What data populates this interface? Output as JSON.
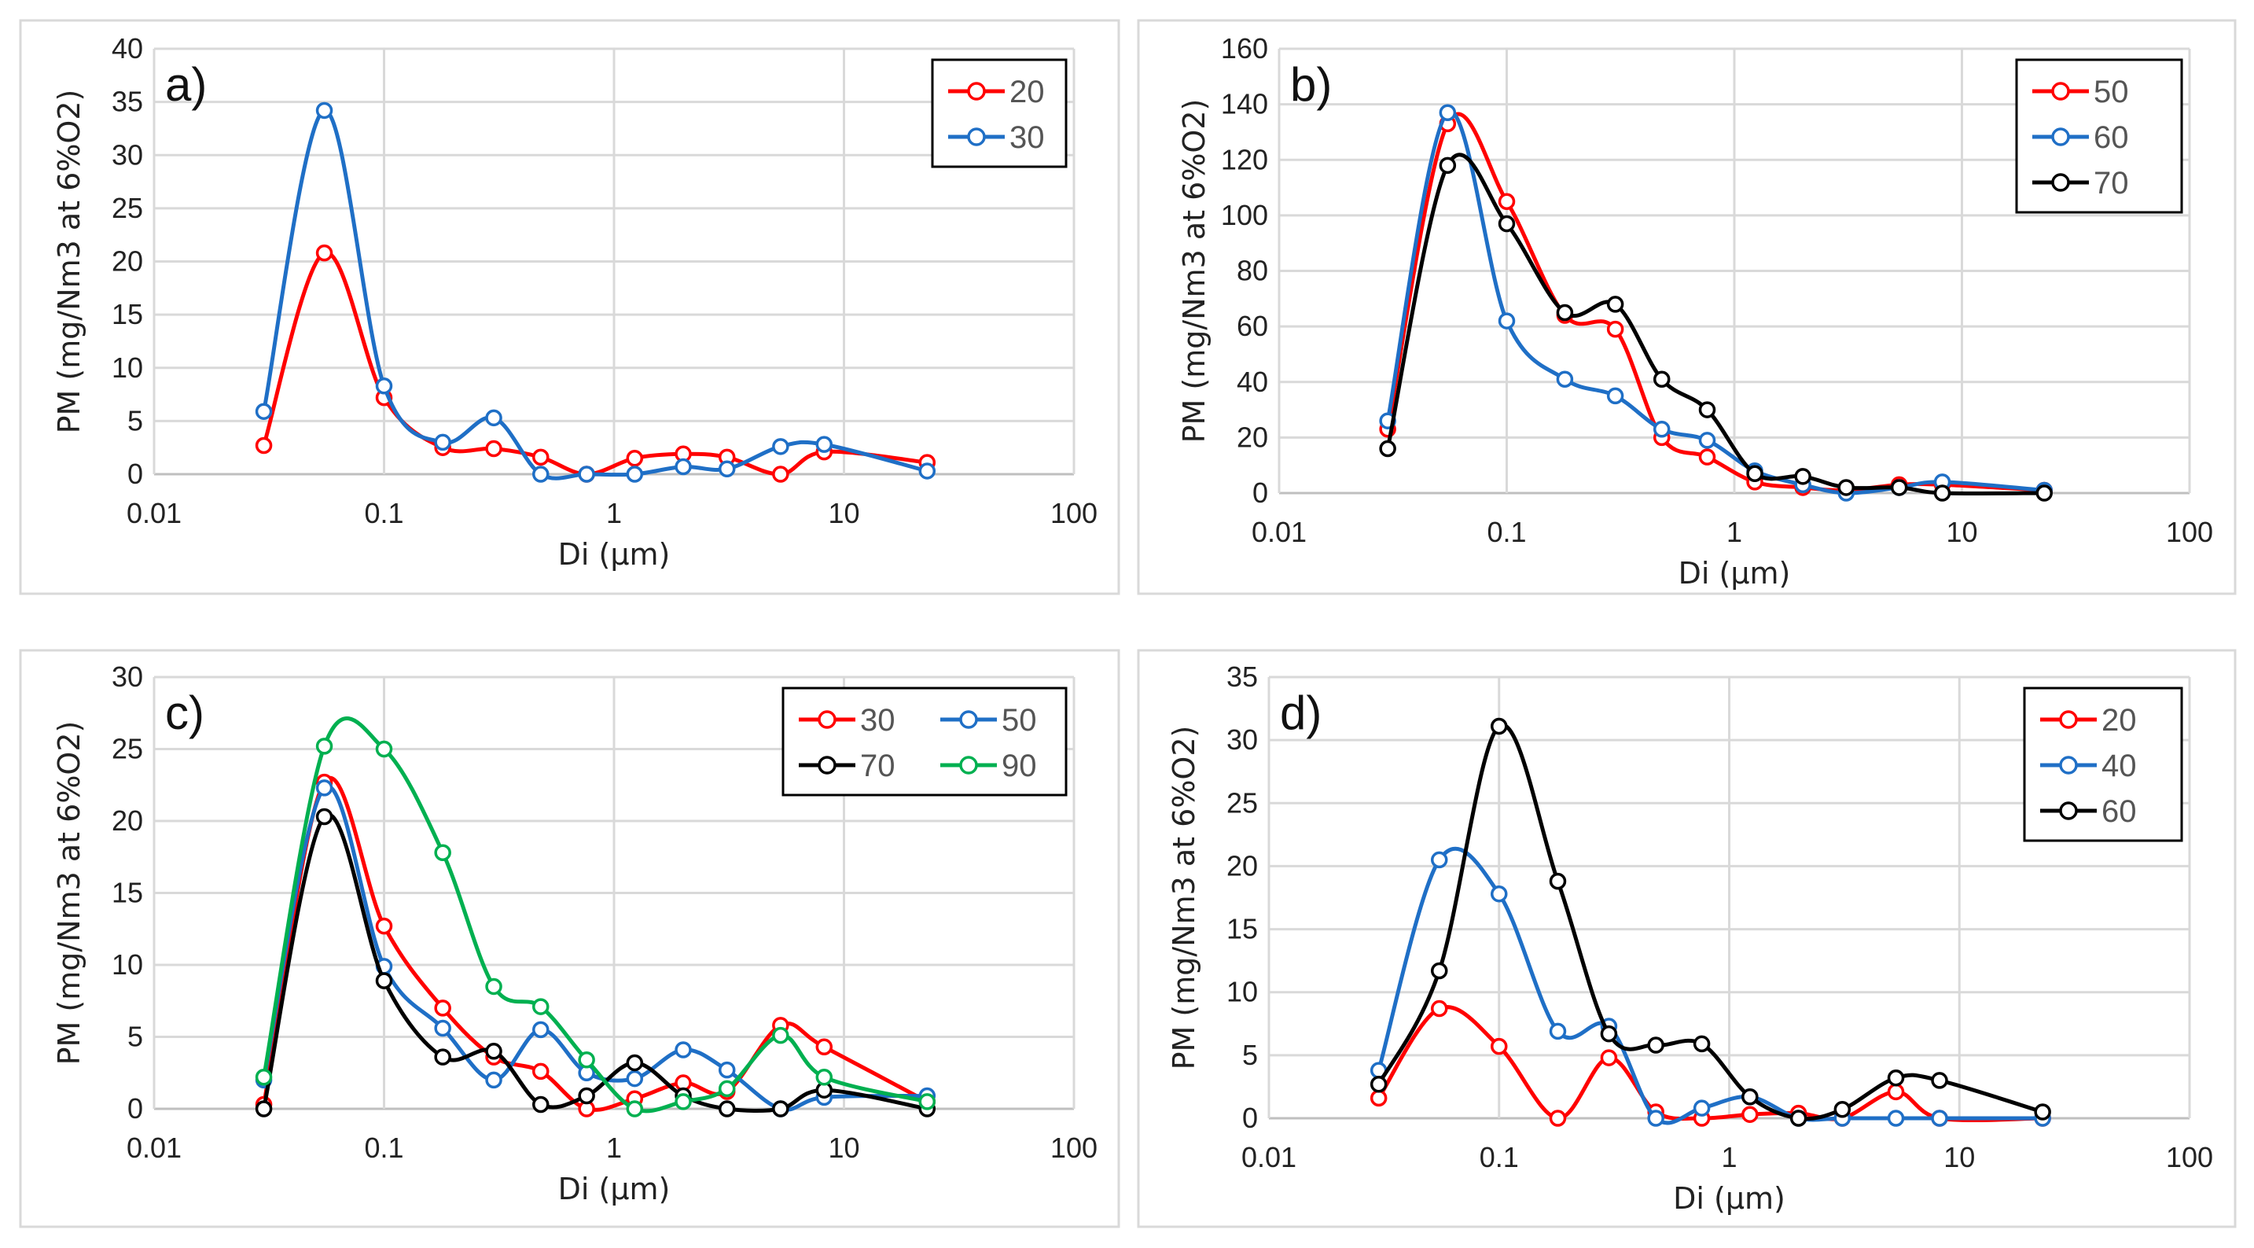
{
  "chart_data": [
    {
      "type": "line",
      "panel_label": "a)",
      "xlabel": "Di (µm)",
      "ylabel": "PM (mg/Nm3 at 6%O2)",
      "xscale": "log",
      "xlim": [
        0.01,
        100
      ],
      "xticks": [
        "0.01",
        "0.1",
        "1",
        "10",
        "100"
      ],
      "ylim": [
        0,
        40
      ],
      "yticks": [
        "0",
        "5",
        "10",
        "15",
        "20",
        "25",
        "30",
        "35",
        "40"
      ],
      "grid": true,
      "legend_position": "top-right",
      "x": [
        0.03,
        0.055,
        0.1,
        0.18,
        0.3,
        0.48,
        0.76,
        1.23,
        2.0,
        3.1,
        5.3,
        8.2,
        23
      ],
      "series": [
        {
          "name": "20",
          "color": "#ff0000",
          "values": [
            2.7,
            20.8,
            7.2,
            2.5,
            2.4,
            1.6,
            0,
            1.5,
            1.9,
            1.6,
            0,
            2.1,
            1.1
          ]
        },
        {
          "name": "30",
          "color": "#1f6fc6",
          "values": [
            5.9,
            34.2,
            8.3,
            3.0,
            5.3,
            0,
            0,
            0,
            0.7,
            0.5,
            2.6,
            2.8,
            0.3
          ]
        }
      ]
    },
    {
      "type": "line",
      "panel_label": "b)",
      "xlabel": "Di (µm)",
      "ylabel": "PM (mg/Nm3 at 6%O2)",
      "xscale": "log",
      "xlim": [
        0.01,
        100
      ],
      "xticks": [
        "0.01",
        "0.1",
        "1",
        "10",
        "100"
      ],
      "ylim": [
        0,
        160
      ],
      "yticks": [
        "0",
        "20",
        "40",
        "60",
        "80",
        "100",
        "120",
        "140",
        "160"
      ],
      "grid": true,
      "legend_position": "top-right",
      "x": [
        0.03,
        0.055,
        0.1,
        0.18,
        0.3,
        0.48,
        0.76,
        1.23,
        2.0,
        3.1,
        5.3,
        8.2,
        23
      ],
      "series": [
        {
          "name": "50",
          "color": "#ff0000",
          "values": [
            23,
            133,
            105,
            64,
            59,
            20,
            13,
            4,
            2,
            1,
            3,
            3,
            1
          ]
        },
        {
          "name": "60",
          "color": "#1f6fc6",
          "values": [
            26,
            137,
            62,
            41,
            35,
            23,
            19,
            8,
            3,
            0,
            2,
            4,
            1
          ]
        },
        {
          "name": "70",
          "color": "#000000",
          "values": [
            16,
            118,
            97,
            65,
            68,
            41,
            30,
            7,
            6,
            2,
            2,
            0,
            0
          ]
        }
      ]
    },
    {
      "type": "line",
      "panel_label": "c)",
      "xlabel": "Di (µm)",
      "ylabel": "PM (mg/Nm3 at 6%O2)",
      "xscale": "log",
      "xlim": [
        0.01,
        100
      ],
      "xticks": [
        "0.01",
        "0.1",
        "1",
        "10",
        "100"
      ],
      "ylim": [
        0,
        30
      ],
      "yticks": [
        "0",
        "5",
        "10",
        "15",
        "20",
        "25",
        "30"
      ],
      "grid": true,
      "legend_position": "top-right",
      "legend_columns": 2,
      "x": [
        0.03,
        0.055,
        0.1,
        0.18,
        0.3,
        0.48,
        0.76,
        1.23,
        2.0,
        3.1,
        5.3,
        8.2,
        23
      ],
      "series": [
        {
          "name": "30",
          "color": "#ff0000",
          "values": [
            0.3,
            22.7,
            12.7,
            7.0,
            3.6,
            2.6,
            0,
            0.7,
            1.8,
            1.2,
            5.8,
            4.3,
            0.5
          ]
        },
        {
          "name": "50",
          "color": "#1f6fc6",
          "values": [
            2.0,
            22.3,
            9.9,
            5.6,
            2.0,
            5.5,
            2.5,
            2.1,
            4.1,
            2.7,
            0,
            0.8,
            0.9
          ]
        },
        {
          "name": "70",
          "color": "#000000",
          "values": [
            0,
            20.3,
            8.9,
            3.6,
            4.0,
            0.3,
            0.9,
            3.2,
            0.9,
            0,
            0,
            1.3,
            0
          ]
        },
        {
          "name": "90",
          "color": "#00b050",
          "values": [
            2.2,
            25.2,
            25.0,
            17.8,
            8.5,
            7.1,
            3.4,
            0,
            0.5,
            1.4,
            5.1,
            2.2,
            0.5
          ]
        }
      ]
    },
    {
      "type": "line",
      "panel_label": "d)",
      "xlabel": "Di (µm)",
      "ylabel": "PM (mg/Nm3 at 6%O2)",
      "xscale": "log",
      "xlim": [
        0.01,
        100
      ],
      "xticks": [
        "0.01",
        "0.1",
        "1",
        "10",
        "100"
      ],
      "ylim": [
        0,
        35
      ],
      "yticks": [
        "0",
        "5",
        "10",
        "15",
        "20",
        "25",
        "30",
        "35"
      ],
      "grid": true,
      "legend_position": "top-right",
      "x": [
        0.03,
        0.055,
        0.1,
        0.18,
        0.3,
        0.48,
        0.76,
        1.23,
        2.0,
        3.1,
        5.3,
        8.2,
        23
      ],
      "series": [
        {
          "name": "20",
          "color": "#ff0000",
          "values": [
            1.6,
            8.7,
            5.7,
            0,
            4.8,
            0.5,
            0,
            0.3,
            0.4,
            0,
            2.1,
            0,
            0
          ]
        },
        {
          "name": "40",
          "color": "#1f6fc6",
          "values": [
            3.8,
            20.5,
            17.8,
            6.9,
            7.3,
            0,
            0.8,
            1.7,
            0,
            0,
            0,
            0,
            0
          ]
        },
        {
          "name": "60",
          "color": "#000000",
          "values": [
            2.7,
            11.7,
            31.1,
            18.8,
            6.7,
            5.8,
            5.9,
            1.7,
            0,
            0.7,
            3.2,
            3.0,
            0.5
          ]
        }
      ]
    }
  ]
}
